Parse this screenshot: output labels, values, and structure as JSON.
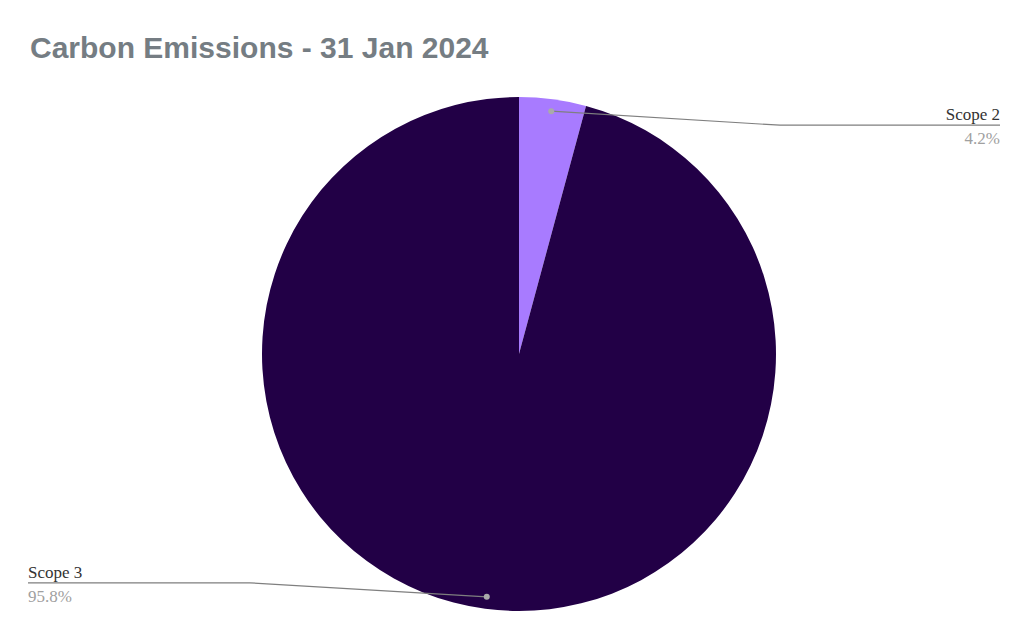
{
  "chart_data": {
    "type": "pie",
    "title": "Carbon Emissions - 31 Jan 2024",
    "categories": [
      "Scope 2",
      "Scope 3"
    ],
    "values": [
      4.2,
      95.8
    ],
    "value_labels": [
      "4.2%",
      "95.8%"
    ],
    "colors": [
      "#a87bff",
      "#220046"
    ],
    "data_labels": true
  }
}
